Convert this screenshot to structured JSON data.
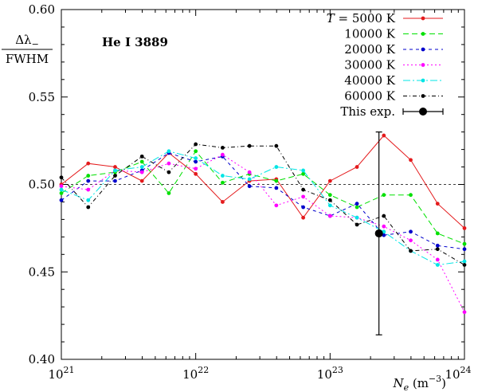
{
  "chart_data": {
    "type": "line",
    "x_scale": "log",
    "x": [
      1e+21,
      1.585e+21,
      2.512e+21,
      3.981e+21,
      6.31e+21,
      1e+22,
      1.585e+22,
      2.512e+22,
      3.981e+22,
      6.31e+22,
      1e+23,
      1.585e+23,
      2.512e+23,
      3.981e+23,
      6.31e+23,
      1e+24
    ],
    "xlim_exp": [
      21,
      24
    ],
    "ylim": [
      0.4,
      0.6
    ],
    "yticks": [
      "0.40",
      "0.45",
      "0.50",
      "0.55",
      "0.60"
    ],
    "xticks": [
      {
        "base": "10",
        "exp": "21",
        "v": 21
      },
      {
        "base": "10",
        "exp": "22",
        "v": 22
      },
      {
        "base": "10",
        "exp": "23",
        "v": 23
      },
      {
        "base": "10",
        "exp": "24",
        "v": 24
      }
    ],
    "xlabel": {
      "var": "N",
      "sub": "e",
      "unit": "(m",
      "unit_exp": "−3",
      "unit_close": ")"
    },
    "ylabel": {
      "numerator_sym": "Δλ",
      "numerator_sub": "−",
      "denominator": "FWHM"
    },
    "annotation": "He I 3889",
    "reference_line": 0.5,
    "series": [
      {
        "name": "T = 5000 K",
        "label_var": "T",
        "label_rest": " = 5000 K",
        "color": "#e41a1c",
        "dash": "",
        "values": [
          0.5,
          0.512,
          0.51,
          0.502,
          0.518,
          0.506,
          0.49,
          0.502,
          0.503,
          0.481,
          0.502,
          0.51,
          0.528,
          0.514,
          0.489,
          0.475
        ]
      },
      {
        "name": "10000 K",
        "label_var": "",
        "label_rest": "10000 K",
        "color": "#00e000",
        "dash": "7,4",
        "values": [
          0.495,
          0.505,
          0.507,
          0.513,
          0.495,
          0.519,
          0.501,
          0.506,
          0.502,
          0.506,
          0.494,
          0.487,
          0.494,
          0.494,
          0.472,
          0.466
        ]
      },
      {
        "name": "20000 K",
        "label_var": "",
        "label_rest": "20000 K",
        "color": "#0000cc",
        "dash": "4,4",
        "values": [
          0.491,
          0.502,
          0.502,
          0.508,
          0.518,
          0.513,
          0.516,
          0.499,
          0.498,
          0.487,
          0.482,
          0.489,
          0.471,
          0.473,
          0.465,
          0.463
        ]
      },
      {
        "name": "30000 K",
        "label_var": "",
        "label_rest": "30000 K",
        "color": "#ff00ff",
        "dash": "2,3",
        "values": [
          0.499,
          0.497,
          0.508,
          0.507,
          0.512,
          0.509,
          0.517,
          0.507,
          0.488,
          0.493,
          0.482,
          0.481,
          0.476,
          0.468,
          0.457,
          0.427
        ]
      },
      {
        "name": "40000 K",
        "label_var": "",
        "label_rest": "40000 K",
        "color": "#00e5e5",
        "dash": "9,3,2,3",
        "values": [
          0.497,
          0.491,
          0.508,
          0.51,
          0.519,
          0.515,
          0.505,
          0.503,
          0.51,
          0.508,
          0.488,
          0.481,
          0.473,
          0.462,
          0.454,
          0.456
        ]
      },
      {
        "name": "60000 K",
        "label_var": "",
        "label_rest": "60000 K",
        "color": "#000000",
        "dash": "5,3,1,3",
        "values": [
          0.504,
          0.487,
          0.505,
          0.516,
          0.507,
          0.523,
          0.521,
          0.522,
          0.522,
          0.497,
          0.491,
          0.477,
          0.482,
          0.462,
          0.463,
          0.454
        ]
      }
    ],
    "experiment": {
      "name": "This exp.",
      "x": 2.31e+23,
      "y": 0.472,
      "yerr_low": 0.414,
      "yerr_high": 0.53
    },
    "legend_position": "top-right",
    "grid": false
  }
}
